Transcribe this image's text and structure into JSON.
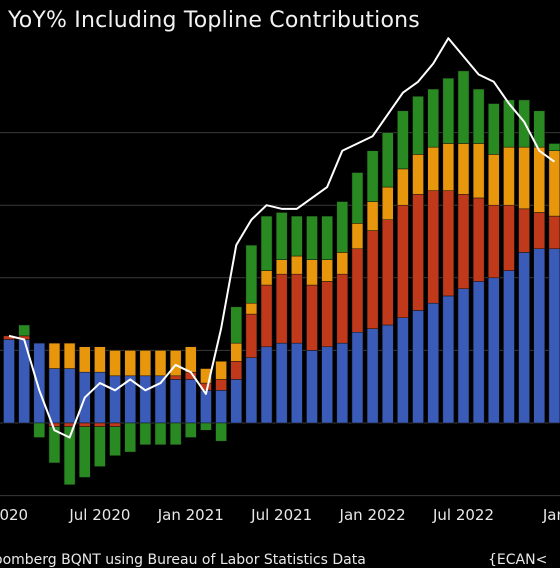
{
  "title": "YoY% Including Topline Contributions",
  "footer": {
    "source": "oomberg BQNT using Bureau of Labor Statistics Data",
    "code": "{ECAN<"
  },
  "chart_data": {
    "type": "bar",
    "stacked": true,
    "xlabel": "",
    "ylabel": "",
    "ylim": [
      -3.9,
      9.5
    ],
    "grid": true,
    "x_tick_labels": [
      "2020",
      "Jul 2020",
      "Jan 2021",
      "Jul 2021",
      "Jan 2022",
      "Jul 2022",
      "Jan"
    ],
    "colors": {
      "blue": "#3a5bb8",
      "red": "#c0391a",
      "orange": "#e8960c",
      "green": "#2a8a22",
      "line": "#ffffff",
      "grid": "#3a3a3a"
    },
    "months": [
      "2020-01",
      "2020-02",
      "2020-03",
      "2020-04",
      "2020-05",
      "2020-06",
      "2020-07",
      "2020-08",
      "2020-09",
      "2020-10",
      "2020-11",
      "2020-12",
      "2021-01",
      "2021-02",
      "2021-03",
      "2021-04",
      "2021-05",
      "2021-06",
      "2021-07",
      "2021-08",
      "2021-09",
      "2021-10",
      "2021-11",
      "2021-12",
      "2022-01",
      "2022-02",
      "2022-03",
      "2022-04",
      "2022-05",
      "2022-06",
      "2022-07",
      "2022-08",
      "2022-09",
      "2022-10",
      "2022-11",
      "2022-12",
      "2023-01"
    ],
    "series": [
      {
        "color": "blue",
        "values": [
          2.3,
          2.3,
          2.2,
          1.5,
          1.5,
          1.4,
          1.4,
          1.3,
          1.3,
          1.3,
          1.3,
          1.2,
          1.2,
          0.9,
          0.9,
          1.2,
          1.8,
          2.1,
          2.2,
          2.2,
          2.0,
          2.1,
          2.2,
          2.5,
          2.6,
          2.7,
          2.9,
          3.1,
          3.3,
          3.5,
          3.7,
          3.9,
          4.0,
          4.2,
          4.7,
          4.8,
          4.8
        ]
      },
      {
        "color": "red",
        "values": [
          0.1,
          0.1,
          0.0,
          0.0,
          0.0,
          0.0,
          0.0,
          0.0,
          0.0,
          0.0,
          0.0,
          0.1,
          0.2,
          0.2,
          0.3,
          0.5,
          1.2,
          1.7,
          1.9,
          1.9,
          1.8,
          1.8,
          1.9,
          2.3,
          2.7,
          2.9,
          3.1,
          3.2,
          3.1,
          2.9,
          2.6,
          2.3,
          2.0,
          1.8,
          1.2,
          1.0,
          0.9
        ]
      },
      {
        "color": "orange",
        "values": [
          0.0,
          0.0,
          0.0,
          0.7,
          0.7,
          0.7,
          0.7,
          0.7,
          0.7,
          0.7,
          0.7,
          0.7,
          0.7,
          0.4,
          0.5,
          0.5,
          0.3,
          0.4,
          0.4,
          0.5,
          0.7,
          0.6,
          0.6,
          0.7,
          0.8,
          0.9,
          1.0,
          1.1,
          1.2,
          1.3,
          1.4,
          1.5,
          1.4,
          1.6,
          1.7,
          1.8,
          1.8
        ]
      },
      {
        "color": "green",
        "values": [
          0.0,
          0.3,
          -0.3,
          -0.5,
          -0.5,
          -0.3,
          -0.3,
          -0.3,
          -0.3,
          -0.3,
          -0.3,
          -0.3,
          -0.3,
          -0.5,
          -0.5,
          1.0,
          1.6,
          1.5,
          1.3,
          1.1,
          1.2,
          1.2,
          1.4,
          1.4,
          1.4,
          1.5,
          1.6,
          1.6,
          1.6,
          1.8,
          2.0,
          1.5,
          1.4,
          1.3,
          1.3,
          1.0,
          0.2
        ]
      }
    ],
    "negative_overrides": {
      "comment_free": true,
      "green_negative": [
        0,
        0,
        -0.4,
        -1.0,
        -1.6,
        -1.4,
        -1.1,
        -0.8,
        -0.8,
        -0.6,
        -0.6,
        -0.6,
        -0.4,
        -0.2,
        0,
        0,
        0,
        0,
        0,
        0,
        0,
        0,
        0,
        0,
        0,
        0,
        0,
        0,
        0,
        0,
        0,
        0,
        0,
        0,
        0,
        0,
        0
      ],
      "red_negative": [
        0,
        0,
        0,
        -0.1,
        -0.1,
        -0.1,
        -0.1,
        -0.1,
        0,
        0,
        0,
        0,
        0,
        0,
        0,
        0,
        0,
        0,
        0,
        0,
        0,
        0,
        0,
        0,
        0,
        0,
        0,
        0,
        0,
        0,
        0,
        0,
        0,
        0,
        0,
        0,
        0
      ]
    },
    "line_values": [
      2.4,
      2.3,
      0.9,
      -0.2,
      -0.4,
      0.7,
      1.1,
      0.9,
      1.2,
      0.9,
      1.1,
      1.6,
      1.4,
      0.8,
      2.6,
      4.9,
      5.6,
      6.0,
      5.9,
      5.9,
      6.2,
      6.5,
      7.5,
      7.7,
      7.9,
      8.5,
      9.1,
      9.4,
      9.9,
      10.6,
      10.1,
      9.6,
      9.4,
      8.8,
      8.3,
      7.5,
      7.2
    ]
  }
}
